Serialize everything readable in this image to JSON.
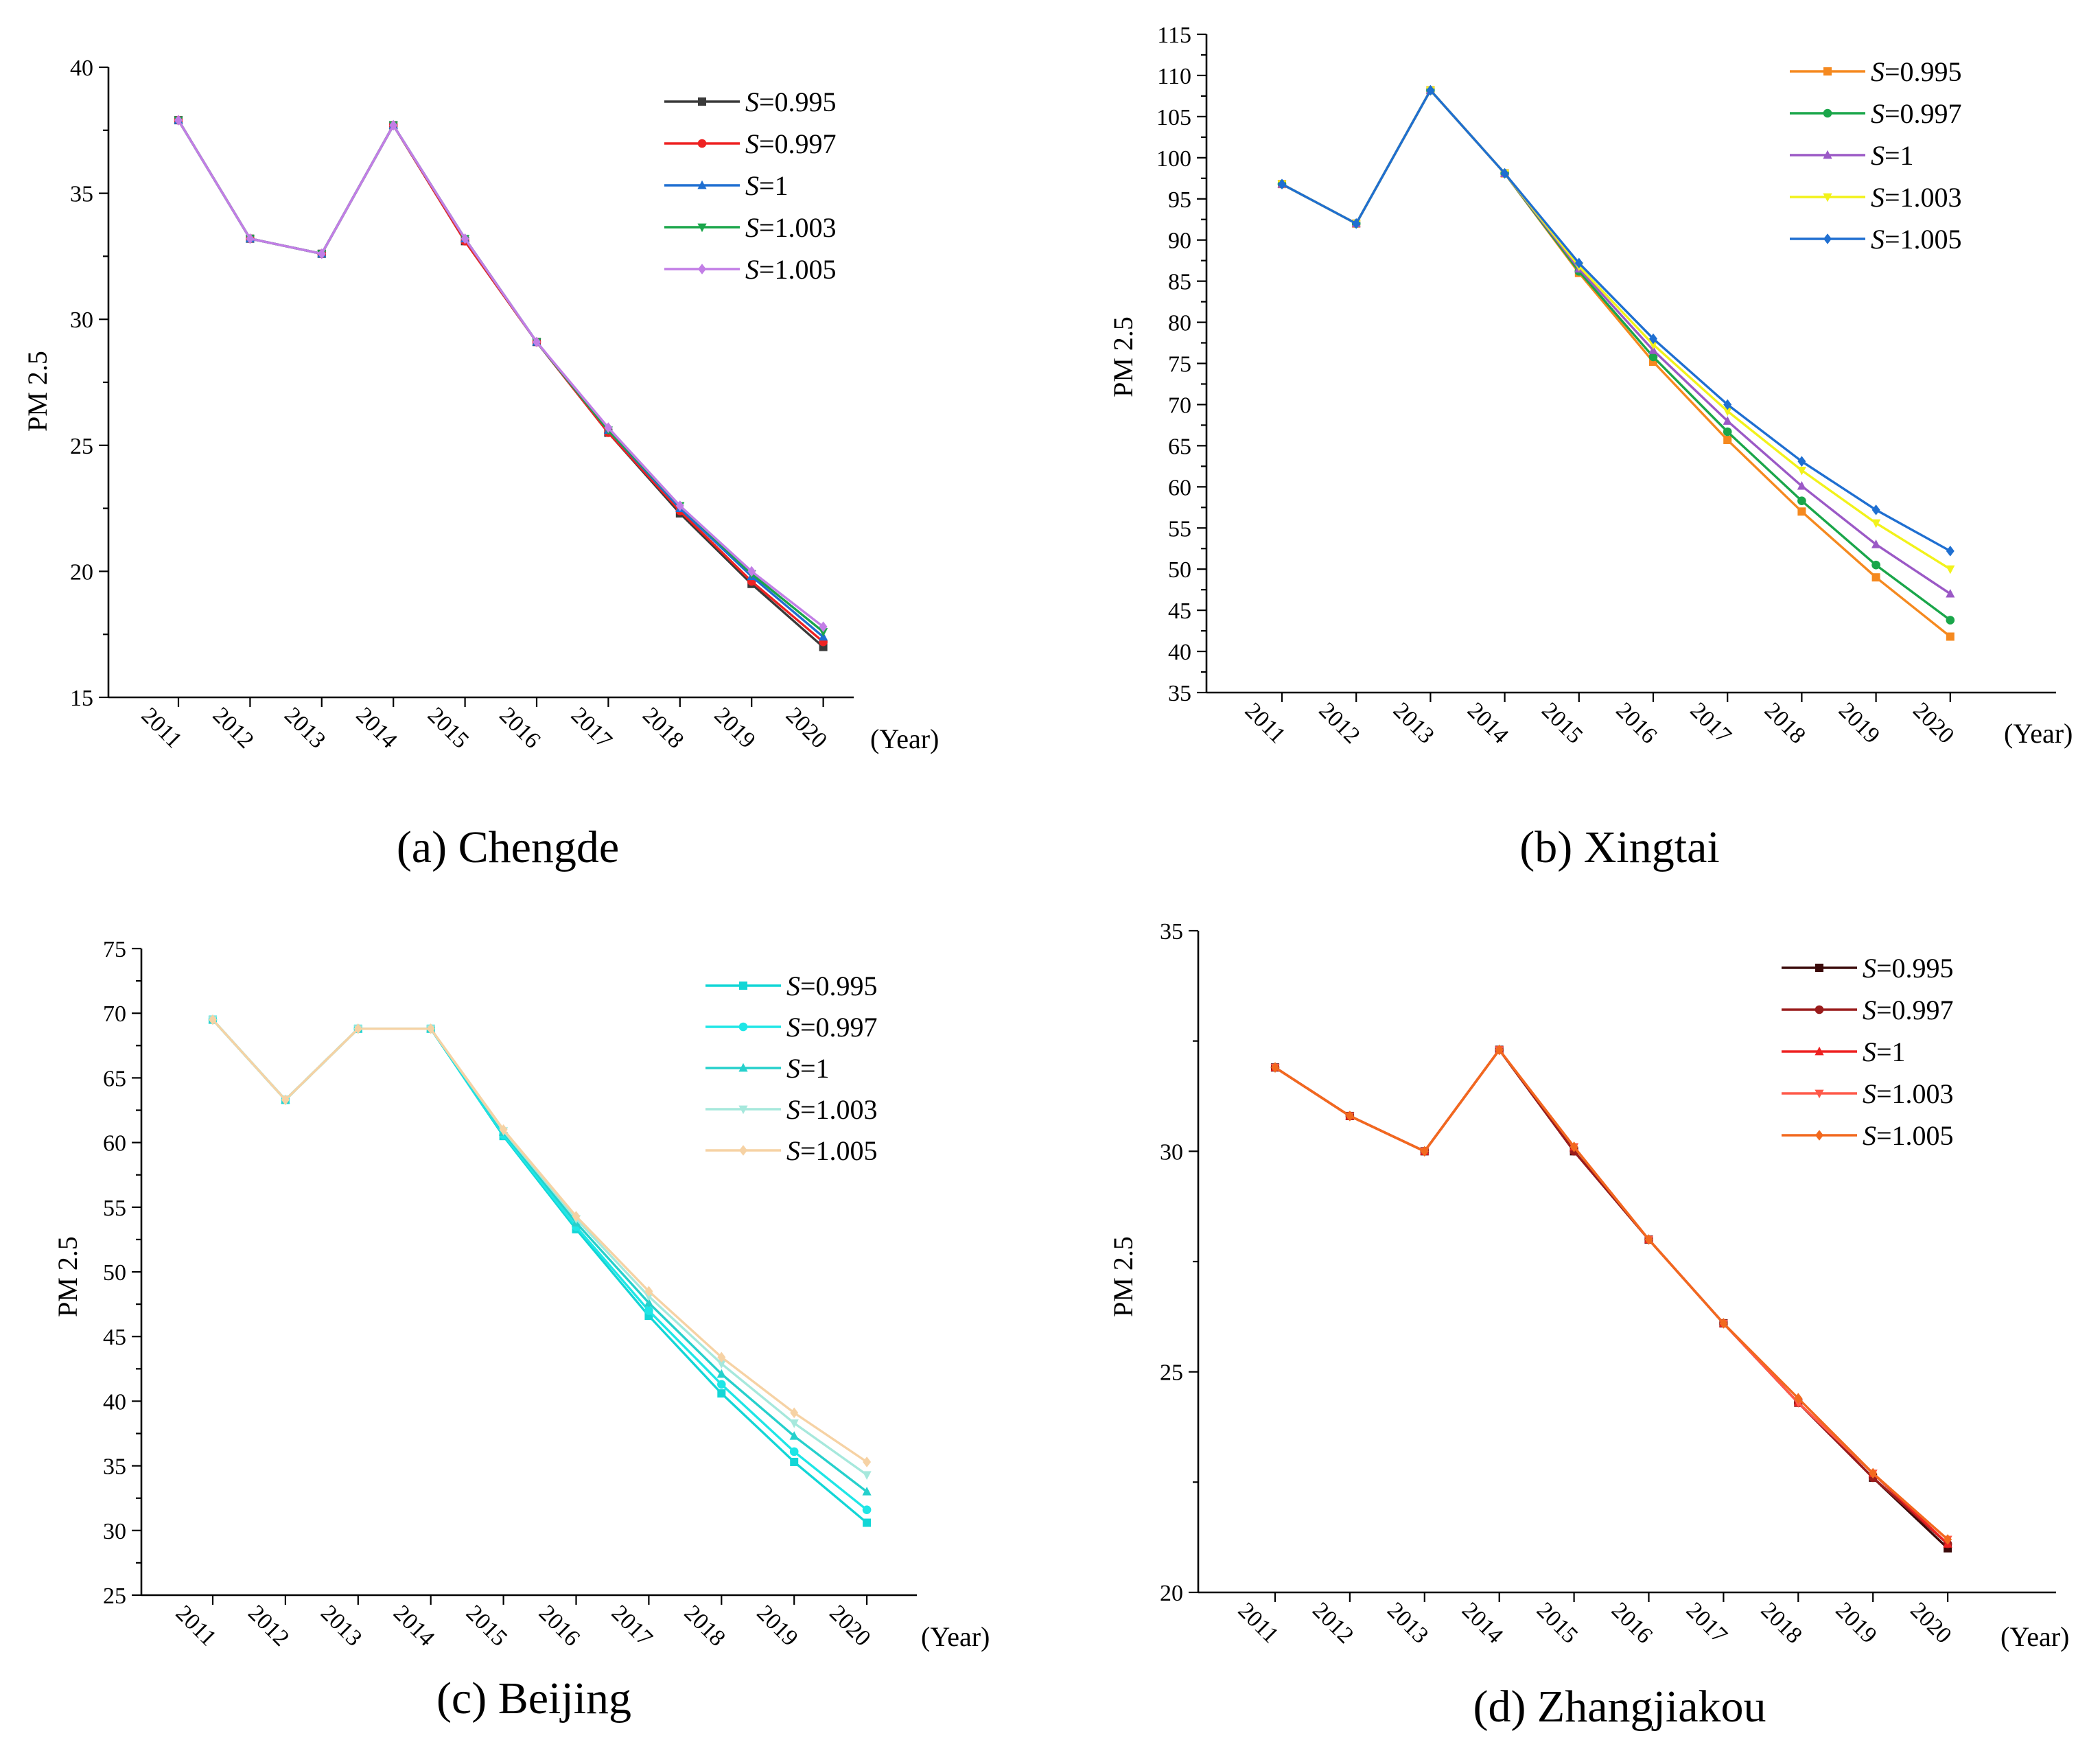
{
  "chart_data": [
    {
      "type": "line",
      "caption": "(a) Chengde",
      "ylabel": "PM 2.5",
      "x_unit": "(Year)",
      "categories": [
        "2011",
        "2012",
        "2013",
        "2014",
        "2015",
        "2016",
        "2017",
        "2018",
        "2019",
        "2020"
      ],
      "ylim": [
        15,
        40
      ],
      "yticks": [
        15,
        20,
        25,
        30,
        35,
        40
      ],
      "legend_position": "top-right",
      "series": [
        {
          "name_italic": "S",
          "name_rest": "=0.995",
          "color": "#3a3a3a",
          "marker": "square",
          "values": [
            37.9,
            33.2,
            32.6,
            37.7,
            33.1,
            29.1,
            25.5,
            22.3,
            19.5,
            17.0
          ]
        },
        {
          "name_italic": "S",
          "name_rest": "=0.997",
          "color": "#ee2222",
          "marker": "circle",
          "values": [
            37.9,
            33.2,
            32.6,
            37.7,
            33.1,
            29.1,
            25.5,
            22.4,
            19.6,
            17.2
          ]
        },
        {
          "name_italic": "S",
          "name_rest": "=1",
          "color": "#1f6fd1",
          "marker": "triangle-up",
          "values": [
            37.9,
            33.2,
            32.6,
            37.7,
            33.2,
            29.1,
            25.6,
            22.5,
            19.8,
            17.4
          ]
        },
        {
          "name_italic": "S",
          "name_rest": "=1.003",
          "color": "#1aa64a",
          "marker": "triangle-down",
          "values": [
            37.9,
            33.2,
            32.6,
            37.7,
            33.2,
            29.1,
            25.6,
            22.6,
            19.9,
            17.6
          ]
        },
        {
          "name_italic": "S",
          "name_rest": "=1.005",
          "color": "#c27ee6",
          "marker": "diamond",
          "values": [
            37.9,
            33.2,
            32.6,
            37.7,
            33.2,
            29.1,
            25.7,
            22.6,
            20.0,
            17.8
          ]
        }
      ]
    },
    {
      "type": "line",
      "caption": "(b) Xingtai",
      "ylabel": "PM 2.5",
      "x_unit": "(Year)",
      "categories": [
        "2011",
        "2012",
        "2013",
        "2014",
        "2015",
        "2016",
        "2017",
        "2018",
        "2019",
        "2020"
      ],
      "ylim": [
        35,
        115
      ],
      "yticks": [
        35,
        40,
        45,
        50,
        55,
        60,
        65,
        70,
        75,
        80,
        85,
        90,
        95,
        100,
        105,
        110,
        115
      ],
      "legend_position": "top-right",
      "series": [
        {
          "name_italic": "S",
          "name_rest": "=0.995",
          "color": "#f5891f",
          "marker": "square",
          "values": [
            96.8,
            92.0,
            108.2,
            98.1,
            86.0,
            75.2,
            65.7,
            57.0,
            49.0,
            41.8
          ]
        },
        {
          "name_italic": "S",
          "name_rest": "=0.997",
          "color": "#1aa64a",
          "marker": "circle",
          "values": [
            96.8,
            92.0,
            108.2,
            98.1,
            86.2,
            75.8,
            66.7,
            58.3,
            50.5,
            43.8
          ]
        },
        {
          "name_italic": "S",
          "name_rest": "=1",
          "color": "#9b59c6",
          "marker": "triangle-up",
          "values": [
            96.8,
            92.0,
            108.2,
            98.1,
            86.5,
            76.6,
            68.0,
            60.1,
            53.0,
            47.0
          ]
        },
        {
          "name_italic": "S",
          "name_rest": "=1.003",
          "color": "#f2f21a",
          "marker": "triangle-down",
          "values": [
            96.8,
            92.0,
            108.2,
            98.1,
            86.8,
            77.3,
            69.2,
            62.0,
            55.6,
            50.0
          ]
        },
        {
          "name_italic": "S",
          "name_rest": "=1.005",
          "color": "#1f6fd1",
          "marker": "diamond",
          "values": [
            96.8,
            92.0,
            108.2,
            98.1,
            87.2,
            78.0,
            70.0,
            63.1,
            57.2,
            52.2
          ]
        }
      ]
    },
    {
      "type": "line",
      "caption": "(c) Beijing",
      "ylabel": "PM 2.5",
      "x_unit": "(Year)",
      "categories": [
        "2011",
        "2012",
        "2013",
        "2014",
        "2015",
        "2016",
        "2017",
        "2018",
        "2019",
        "2020"
      ],
      "ylim": [
        25,
        75
      ],
      "yticks": [
        25,
        30,
        35,
        40,
        45,
        50,
        55,
        60,
        65,
        70,
        75
      ],
      "legend_position": "top-right",
      "series": [
        {
          "name_italic": "S",
          "name_rest": "=0.995",
          "color": "#12d6d6",
          "marker": "square",
          "values": [
            69.5,
            63.3,
            68.8,
            68.8,
            60.5,
            53.3,
            46.6,
            40.6,
            35.3,
            30.6
          ]
        },
        {
          "name_italic": "S",
          "name_rest": "=0.997",
          "color": "#1ee6e6",
          "marker": "circle",
          "values": [
            69.5,
            63.3,
            68.8,
            68.8,
            60.6,
            53.5,
            47.0,
            41.3,
            36.1,
            31.6
          ]
        },
        {
          "name_italic": "S",
          "name_rest": "=1",
          "color": "#26d0cc",
          "marker": "triangle-up",
          "values": [
            69.5,
            63.3,
            68.8,
            68.8,
            60.8,
            53.8,
            47.6,
            42.1,
            37.3,
            33.0
          ]
        },
        {
          "name_italic": "S",
          "name_rest": "=1.003",
          "color": "#a6e8dc",
          "marker": "triangle-down",
          "values": [
            69.5,
            63.3,
            68.8,
            68.8,
            60.9,
            54.1,
            48.1,
            42.9,
            38.3,
            34.3
          ]
        },
        {
          "name_italic": "S",
          "name_rest": "=1.005",
          "color": "#f6d2a4",
          "marker": "diamond",
          "values": [
            69.5,
            63.3,
            68.8,
            68.8,
            61.0,
            54.3,
            48.5,
            43.4,
            39.1,
            35.3
          ]
        }
      ]
    },
    {
      "type": "line",
      "caption": "(d) Zhangjiakou",
      "ylabel": "PM 2.5",
      "x_unit": "(Year)",
      "categories": [
        "2011",
        "2012",
        "2013",
        "2014",
        "2015",
        "2016",
        "2017",
        "2018",
        "2019",
        "2020"
      ],
      "ylim": [
        20,
        35
      ],
      "yticks": [
        20,
        25,
        30,
        35
      ],
      "legend_position": "top-right",
      "series": [
        {
          "name_italic": "S",
          "name_rest": "=0.995",
          "color": "#3a0a0a",
          "marker": "square",
          "values": [
            31.9,
            30.8,
            30.0,
            32.3,
            30.0,
            28.0,
            26.1,
            24.3,
            22.6,
            21.0
          ]
        },
        {
          "name_italic": "S",
          "name_rest": "=0.997",
          "color": "#9a1c1c",
          "marker": "circle",
          "values": [
            31.9,
            30.8,
            30.0,
            32.3,
            30.0,
            28.0,
            26.1,
            24.3,
            22.6,
            21.1
          ]
        },
        {
          "name_italic": "S",
          "name_rest": "=1",
          "color": "#ee2222",
          "marker": "triangle-up",
          "values": [
            31.9,
            30.8,
            30.0,
            32.3,
            30.1,
            28.0,
            26.1,
            24.3,
            22.7,
            21.1
          ]
        },
        {
          "name_italic": "S",
          "name_rest": "=1.003",
          "color": "#ff5a4a",
          "marker": "triangle-down",
          "values": [
            31.9,
            30.8,
            30.0,
            32.3,
            30.1,
            28.0,
            26.1,
            24.3,
            22.7,
            21.2
          ]
        },
        {
          "name_italic": "S",
          "name_rest": "=1.005",
          "color": "#f2691e",
          "marker": "diamond",
          "values": [
            31.9,
            30.8,
            30.0,
            32.3,
            30.1,
            28.0,
            26.1,
            24.4,
            22.7,
            21.2
          ]
        }
      ]
    }
  ]
}
